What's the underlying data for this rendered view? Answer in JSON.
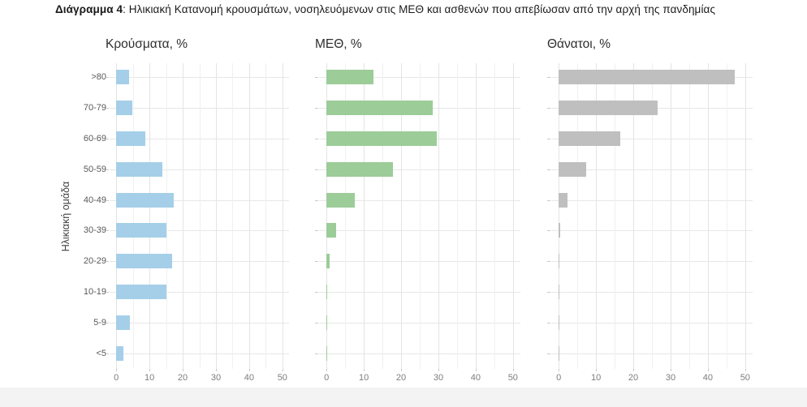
{
  "header": {
    "title_bold": "Διάγραμμα 4",
    "title_rest": ": Ηλικιακή Κατανομή κρουσμάτων, νοσηλευόμενων στις ΜΕΘ και ασθενών που απεβίωσαν από την αρχή της πανδημίας"
  },
  "chart_data": {
    "type": "bar",
    "orientation": "horizontal",
    "title": "Διάγραμμα 4: Ηλικιακή Κατανομή κρουσμάτων, νοσηλευόμενων στις ΜΕΘ και ασθενών που απεβίωσαν από την αρχή της πανδημίας",
    "ylabel": "Ηλικιακή ομάδα",
    "categories": [
      ">80",
      "70-79",
      "60-69",
      "50-59",
      "40-49",
      "30-39",
      "20-29",
      "10-19",
      "5-9",
      "<5"
    ],
    "x_ticks": [
      0,
      10,
      20,
      30,
      40,
      50
    ],
    "x_minor_step": 5,
    "xlim": [
      0,
      52
    ],
    "grid": "vertical major every 10 and minor every 5, horizontal line at each category",
    "legend": "none",
    "panels": [
      {
        "name": "cases",
        "title": "Κρούσματα, %",
        "color": "#a5cfe8",
        "values": [
          3.9,
          4.9,
          8.8,
          14.0,
          17.4,
          15.1,
          16.7,
          15.1,
          4.1,
          2.2
        ]
      },
      {
        "name": "icu",
        "title": "ΜΕΘ, %",
        "color": "#9ccc98",
        "values": [
          12.7,
          28.5,
          29.6,
          17.9,
          7.5,
          2.6,
          0.8,
          0.2,
          0.1,
          0.2
        ]
      },
      {
        "name": "deaths",
        "title": "Θάνατοι, %",
        "color": "#bfbfbf",
        "values": [
          47.3,
          26.6,
          16.5,
          7.3,
          2.3,
          0.5,
          0.1,
          0.1,
          0.1,
          0.1
        ]
      }
    ]
  },
  "colors": {
    "background": "#ffffff",
    "grid_major": "#e4e4e4",
    "grid_minor": "#f0f0f0",
    "axis_text": "#7d7d7d",
    "category_text": "#585858",
    "bottom_strip": "#f3f3f3"
  }
}
